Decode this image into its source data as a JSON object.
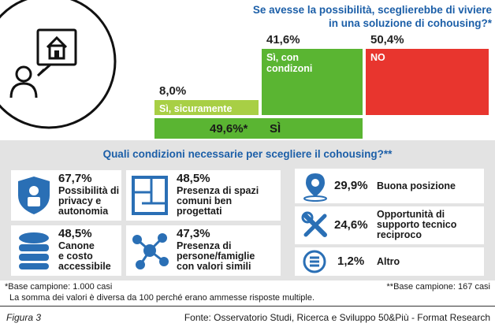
{
  "chart_data": {
    "type": "bar",
    "title": "Se avesse la possibilità, sceglierebbe di viviere\nin una soluzione di cohousing?*",
    "segments": [
      {
        "label": "Sì, sicuramente",
        "value": 8.0,
        "display": "8,0%",
        "color": "#a8cf45"
      },
      {
        "label": "Sì, con\ncondizoni",
        "value": 41.6,
        "display": "41,6%",
        "color": "#5ab532"
      },
      {
        "label": "NO",
        "value": 50.4,
        "display": "50,4%",
        "color": "#e8352e"
      }
    ],
    "total_yes": {
      "label": "SÌ",
      "value": 49.6,
      "display": "49,6%*",
      "color": "#5ab532"
    },
    "conditions_title": "Quali condizioni necessarie per scegliere il cohousing?**",
    "conditions": [
      {
        "value": 67.7,
        "display": "67,7%",
        "label": "Possibilità di\nprivacy e\nautonomia",
        "icon": "privacy-lock-icon"
      },
      {
        "value": 48.5,
        "display": "48,5%",
        "label": "Presenza di spazi\ncomuni ben\nprogettati",
        "icon": "floor-plan-icon"
      },
      {
        "value": 48.5,
        "display": "48,5%",
        "label": "Canone\ne costo\naccessibile",
        "icon": "coins-icon"
      },
      {
        "value": 47.3,
        "display": "47,3%",
        "label": "Presenza di\npersone/famiglie\ncon valori simili",
        "icon": "network-icon"
      },
      {
        "value": 29.9,
        "display": "29,9%",
        "label": "Buona posizione",
        "icon": "map-pin-icon"
      },
      {
        "value": 24.6,
        "display": "24,6%",
        "label": "Opportunità di\nsupporto tecnico\nreciproco",
        "icon": "tools-icon"
      },
      {
        "value": 1.2,
        "display": "1,2%",
        "label": "Altro",
        "icon": "list-icon"
      }
    ]
  },
  "notes": {
    "base1": "*Base campione: 1.000 casi",
    "base2": "**Base campione: 167 casi",
    "multi": "La somma dei valori è diversa da 100 perché erano ammesse risposte multiple."
  },
  "footer": {
    "figure": "Figura 3",
    "source": "Fonte: Osservatorio Studi, Ricerca e Sviluppo 50&Più - Format Research"
  },
  "colors": {
    "title_blue": "#1c5fa8",
    "icon_blue": "#2a6fb5",
    "panel_gray": "#e3e3e3"
  },
  "header_icon": "house-speech-person-icon"
}
